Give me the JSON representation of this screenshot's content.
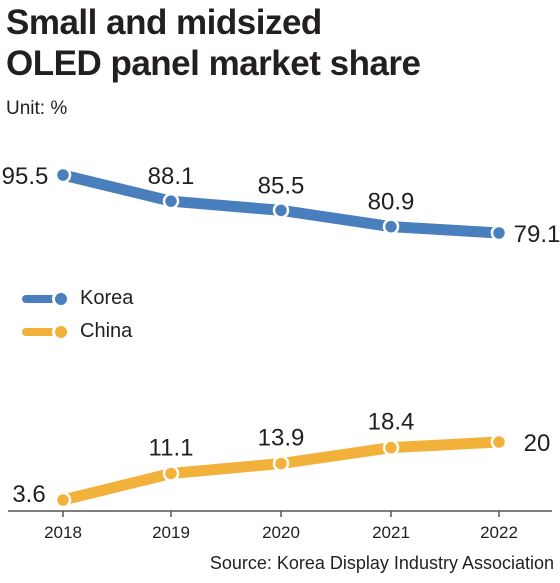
{
  "title_line1": "Small and midsized",
  "title_line2": "OLED panel market share",
  "unit": "Unit: %",
  "source": "Source: Korea Display Industry Association",
  "chart_data": {
    "type": "line",
    "title": "Small and midsized OLED panel market share",
    "x": [
      "2018",
      "2019",
      "2020",
      "2021",
      "2022"
    ],
    "ylabel": "",
    "xlabel": "",
    "legend_position": "left-middle",
    "grid": false,
    "series": [
      {
        "name": "Korea",
        "values": [
          95.5,
          88.1,
          85.5,
          80.9,
          79.1
        ],
        "color": "#4a7fbd"
      },
      {
        "name": "China",
        "values": [
          3.6,
          11.1,
          13.9,
          18.4,
          20
        ],
        "color": "#f2b13a"
      }
    ],
    "axis_color": "#555555"
  }
}
